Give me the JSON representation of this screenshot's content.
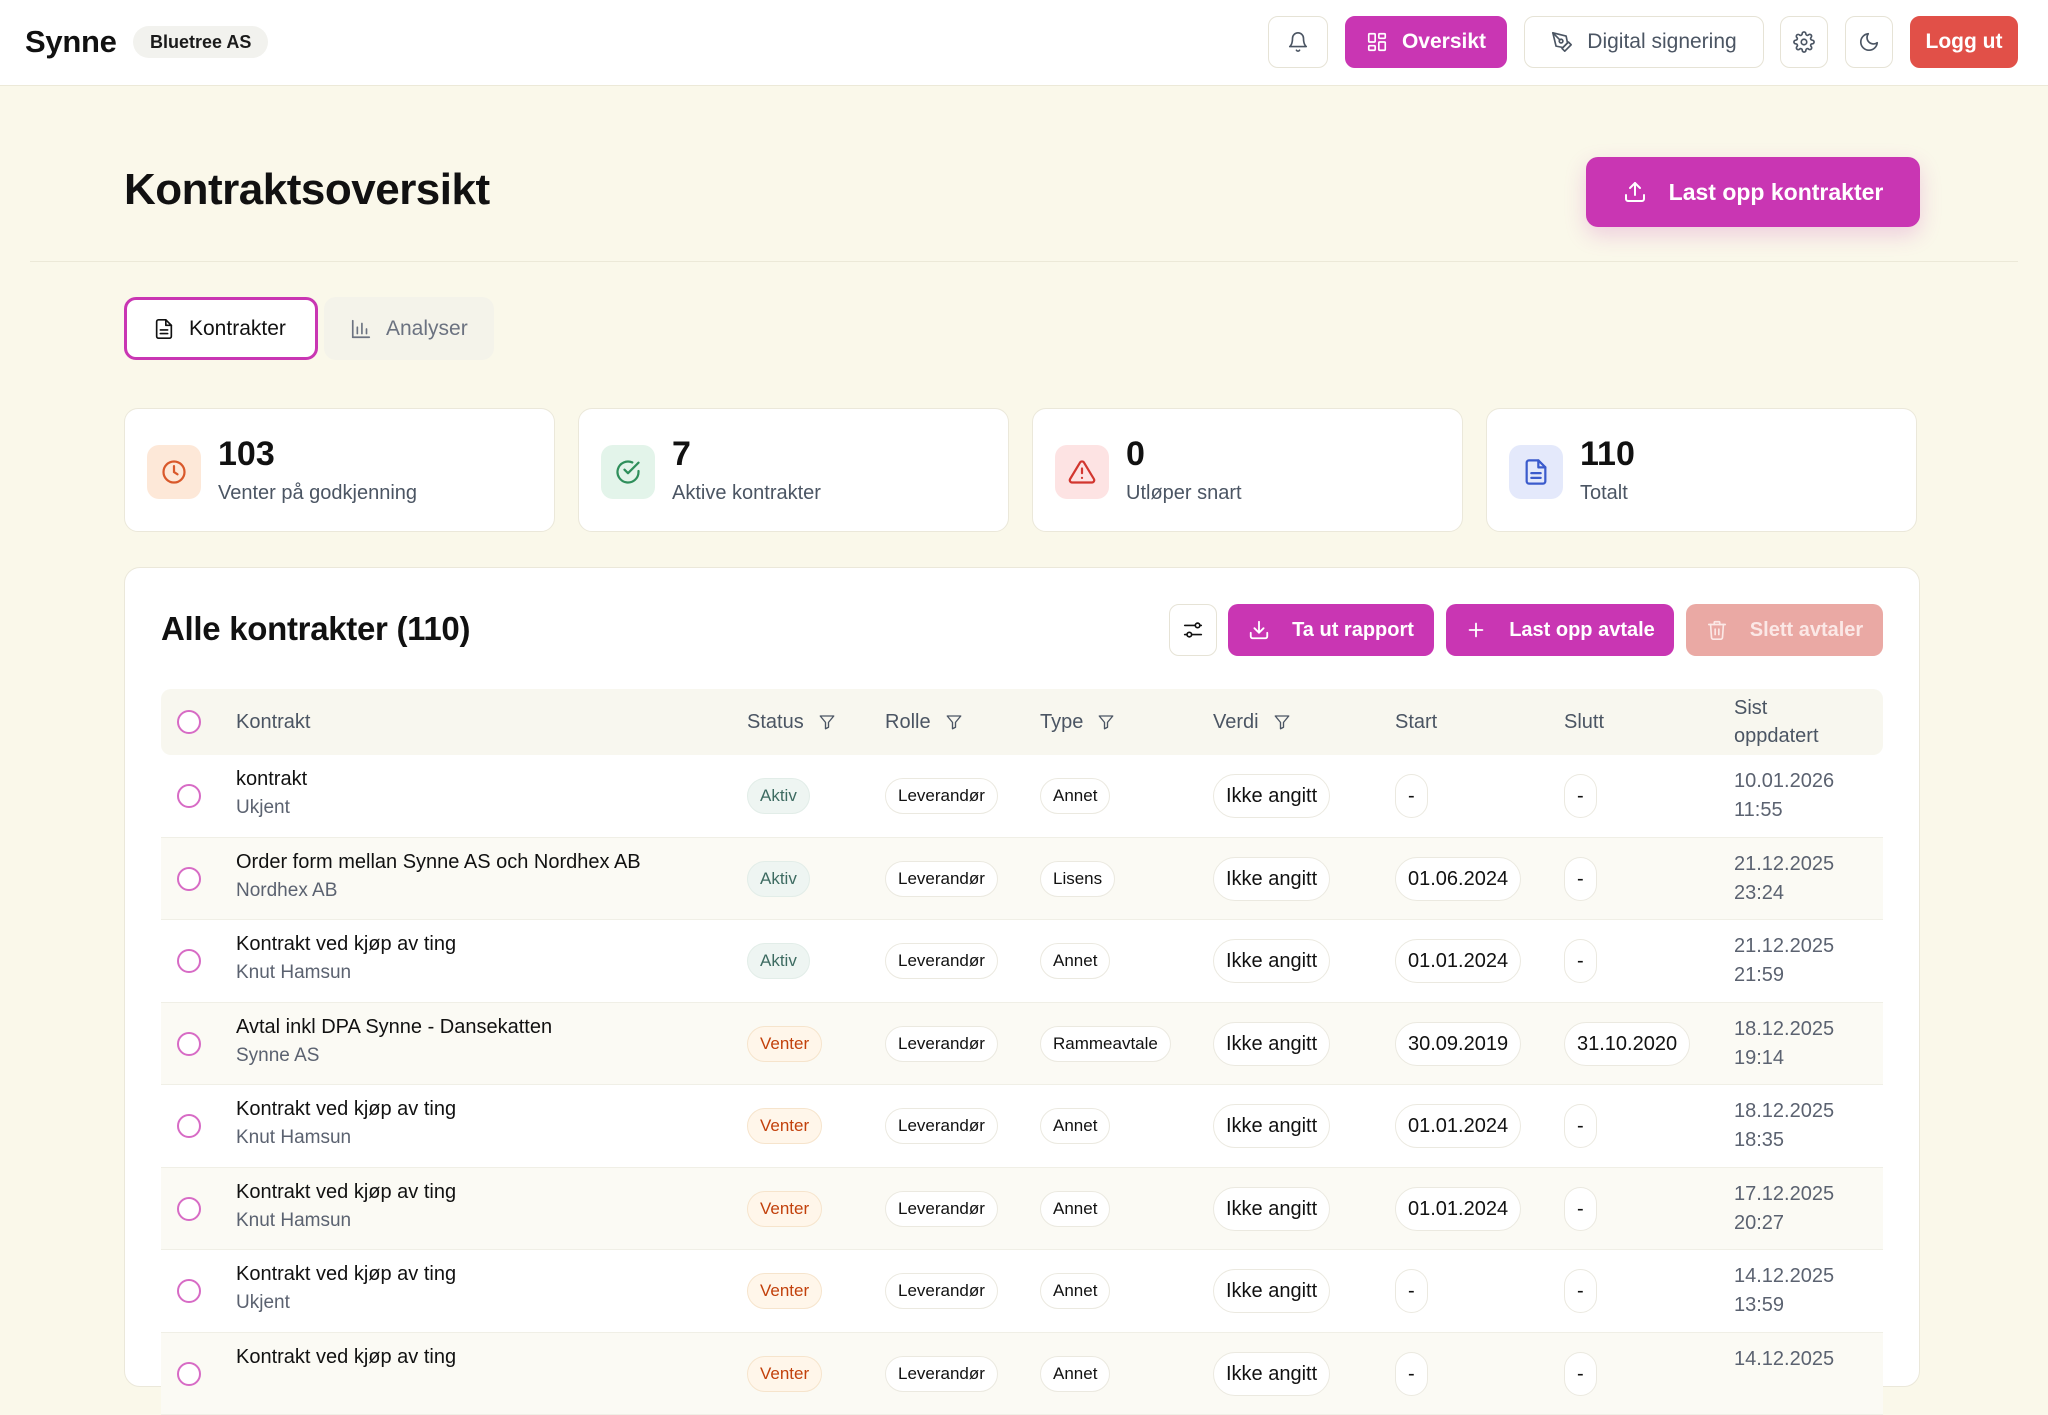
{
  "app": {
    "brand": "Synne",
    "org": "Bluetree AS"
  },
  "nav": {
    "overview": "Oversikt",
    "signing": "Digital signering",
    "logout": "Logg ut"
  },
  "header": {
    "title": "Kontraktsoversikt",
    "upload": "Last opp kontrakter"
  },
  "tabs": [
    {
      "label": "Kontrakter"
    },
    {
      "label": "Analyser"
    }
  ],
  "stats": [
    {
      "value": "103",
      "label": "Venter på godkjenning"
    },
    {
      "value": "7",
      "label": "Aktive kontrakter"
    },
    {
      "value": "0",
      "label": "Utløper snart"
    },
    {
      "value": "110",
      "label": "Totalt"
    }
  ],
  "table": {
    "title": "Alle kontrakter (110)",
    "actions": {
      "report": "Ta ut rapport",
      "upload": "Last opp avtale",
      "delete": "Slett avtaler"
    },
    "columns": {
      "contract": "Kontrakt",
      "status": "Status",
      "role": "Rolle",
      "type": "Type",
      "value": "Verdi",
      "start": "Start",
      "end": "Slutt",
      "updated_1": "Sist",
      "updated_2": "oppdatert"
    },
    "rows": [
      {
        "title": "kontrakt",
        "party": "Ukjent",
        "status": "Aktiv",
        "role": "Leverandør",
        "type": "Annet",
        "value": "Ikke angitt",
        "start": "-",
        "end": "-",
        "updated_date": "10.01.2026",
        "updated_time": "11:55"
      },
      {
        "title": "Order form mellan Synne AS och Nordhex AB",
        "party": "Nordhex AB",
        "status": "Aktiv",
        "role": "Leverandør",
        "type": "Lisens",
        "value": "Ikke angitt",
        "start": "01.06.2024",
        "end": "-",
        "updated_date": "21.12.2025",
        "updated_time": "23:24"
      },
      {
        "title": "Kontrakt ved kjøp av ting",
        "party": "Knut Hamsun",
        "status": "Aktiv",
        "role": "Leverandør",
        "type": "Annet",
        "value": "Ikke angitt",
        "start": "01.01.2024",
        "end": "-",
        "updated_date": "21.12.2025",
        "updated_time": "21:59"
      },
      {
        "title": "Avtal inkl DPA Synne - Dansekatten",
        "party": "Synne AS",
        "status": "Venter",
        "role": "Leverandør",
        "type": "Rammeavtale",
        "value": "Ikke angitt",
        "start": "30.09.2019",
        "end": "31.10.2020",
        "updated_date": "18.12.2025",
        "updated_time": "19:14"
      },
      {
        "title": "Kontrakt ved kjøp av ting",
        "party": "Knut Hamsun",
        "status": "Venter",
        "role": "Leverandør",
        "type": "Annet",
        "value": "Ikke angitt",
        "start": "01.01.2024",
        "end": "-",
        "updated_date": "18.12.2025",
        "updated_time": "18:35"
      },
      {
        "title": "Kontrakt ved kjøp av ting",
        "party": "Knut Hamsun",
        "status": "Venter",
        "role": "Leverandør",
        "type": "Annet",
        "value": "Ikke angitt",
        "start": "01.01.2024",
        "end": "-",
        "updated_date": "17.12.2025",
        "updated_time": "20:27"
      },
      {
        "title": "Kontrakt ved kjøp av ting",
        "party": "Ukjent",
        "status": "Venter",
        "role": "Leverandør",
        "type": "Annet",
        "value": "Ikke angitt",
        "start": "-",
        "end": "-",
        "updated_date": "14.12.2025",
        "updated_time": "13:59"
      },
      {
        "title": "Kontrakt ved kjøp av ting",
        "party": "",
        "status": "Venter",
        "role": "Leverandør",
        "type": "Annet",
        "value": "Ikke angitt",
        "start": "-",
        "end": "-",
        "updated_date": "14.12.2025",
        "updated_time": ""
      }
    ]
  },
  "colors": {
    "accent": "#c936b3",
    "danger": "#e15048",
    "background": "#faf8ea"
  },
  "icons": {
    "bell": "bell-icon",
    "grid": "grid-icon",
    "pen": "pen-icon",
    "gear": "gear-icon",
    "moon": "moon-icon",
    "upload": "upload-icon",
    "document": "document-icon",
    "bar_chart": "bar-chart-icon",
    "clock": "clock-icon",
    "check": "check-circle-icon",
    "warning": "warning-icon",
    "sliders": "sliders-icon",
    "download": "download-icon",
    "plus": "plus-icon",
    "trash": "trash-icon",
    "filter": "filter-icon"
  }
}
